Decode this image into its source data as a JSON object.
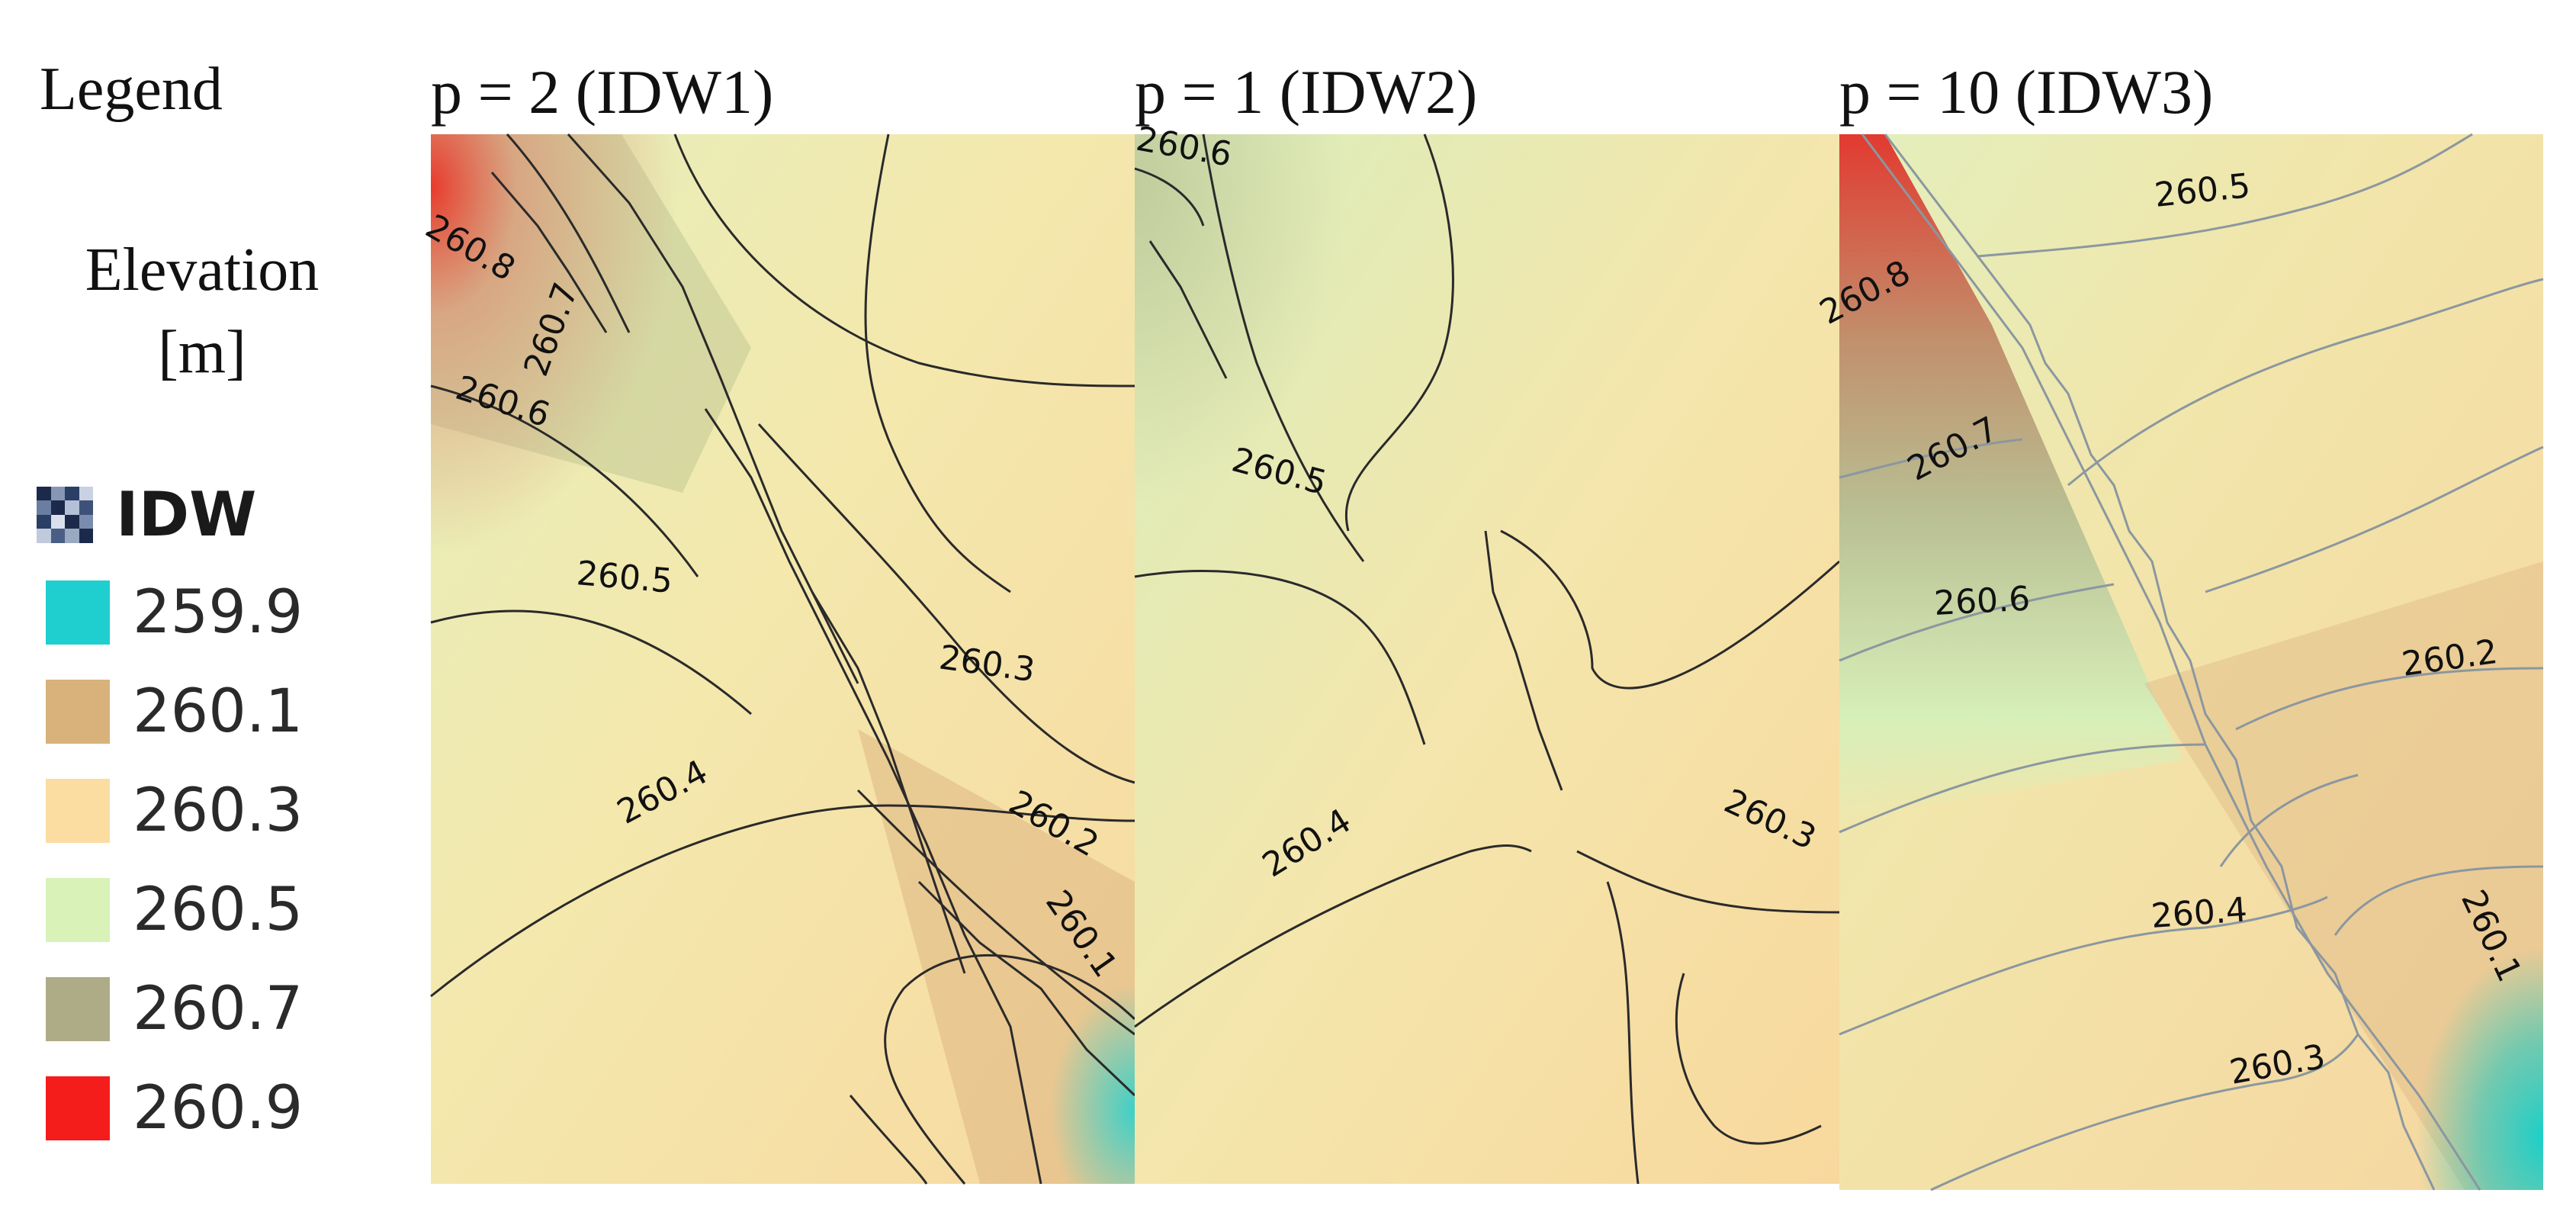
{
  "legend": {
    "heading": "Legend",
    "subtitle": "Elevation [m]",
    "layer_name": "IDW",
    "layer_icon": "raster-layer-icon",
    "items": [
      {
        "value": "259.9",
        "color": "#1fcfcf"
      },
      {
        "value": "260.1",
        "color": "#d8b27a"
      },
      {
        "value": "260.3",
        "color": "#fbdda2"
      },
      {
        "value": "260.5",
        "color": "#d8f2b8"
      },
      {
        "value": "260.7",
        "color": "#adac86"
      },
      {
        "value": "260.9",
        "color": "#f51c1c"
      }
    ]
  },
  "panels": [
    {
      "title": "p = 2 (IDW1)",
      "contour_labels": [
        "260.8",
        "260.7",
        "260.6",
        "260.5",
        "260.3",
        "260.4",
        "260.2",
        "260.1"
      ]
    },
    {
      "title": "p = 1 (IDW2)",
      "contour_labels": [
        "260.6",
        "260.5",
        "260.4",
        "260.3"
      ]
    },
    {
      "title": "p = 10 (IDW3)",
      "contour_labels": [
        "260.5",
        "260.8",
        "260.7",
        "260.6",
        "260.2",
        "260.4",
        "260.3",
        "260.1"
      ]
    }
  ]
}
